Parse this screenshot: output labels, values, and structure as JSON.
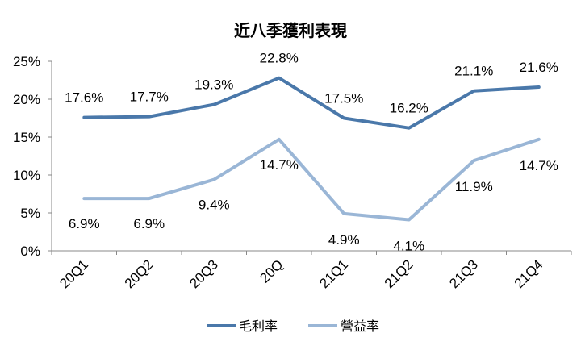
{
  "chart_data": {
    "type": "line",
    "title": "近八季獲利表現",
    "categories": [
      "20Q1",
      "20Q2",
      "20Q3",
      "20Q",
      "21Q1",
      "21Q2",
      "21Q3",
      "21Q4"
    ],
    "ylim": [
      0,
      25
    ],
    "yticks": [
      0,
      5,
      10,
      15,
      20,
      25
    ],
    "ytick_labels": [
      "0%",
      "5%",
      "10%",
      "15%",
      "20%",
      "25%"
    ],
    "series": [
      {
        "name": "毛利率",
        "color": "#4a78aa",
        "values": [
          17.6,
          17.7,
          19.3,
          22.8,
          17.5,
          16.2,
          21.1,
          21.6
        ],
        "labels": [
          "17.6%",
          "17.7%",
          "19.3%",
          "22.8%",
          "17.5%",
          "16.2%",
          "21.1%",
          "21.6%"
        ]
      },
      {
        "name": "營益率",
        "color": "#9ab6d6",
        "values": [
          6.9,
          6.9,
          9.4,
          14.7,
          4.9,
          4.1,
          11.9,
          14.7
        ],
        "labels": [
          "6.9%",
          "6.9%",
          "9.4%",
          "14.7%",
          "4.9%",
          "4.1%",
          "11.9%",
          "14.7%"
        ]
      }
    ],
    "legend_position": "bottom-center",
    "grid": false
  }
}
